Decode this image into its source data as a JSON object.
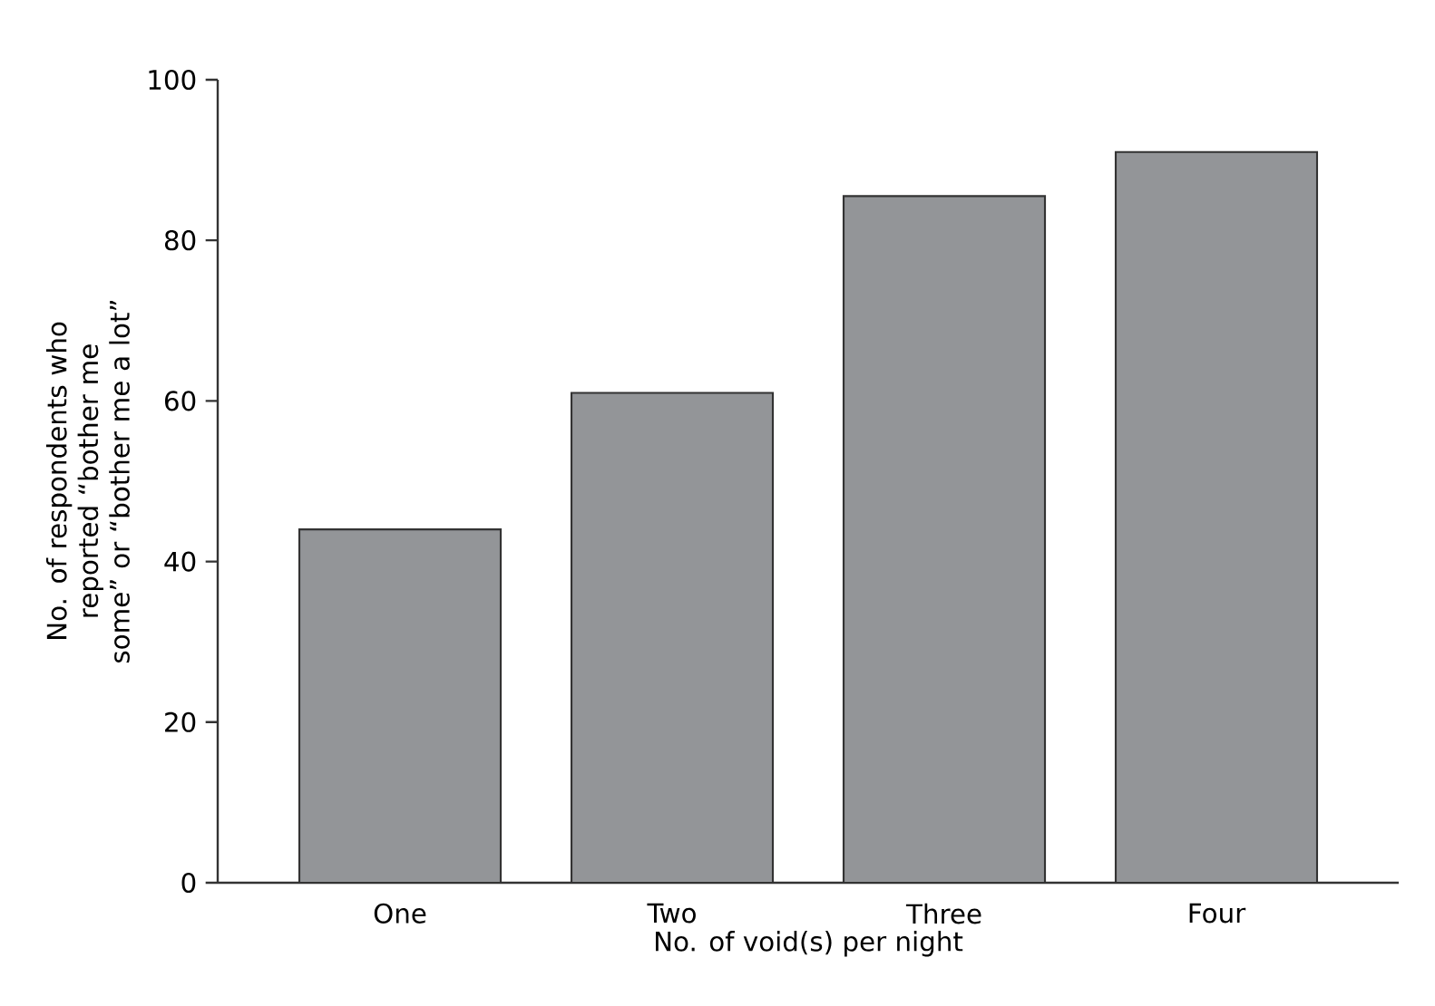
{
  "chart_data": {
    "type": "bar",
    "xlabel": "No. of void(s) per night",
    "ylabel": "No. of respondents who reported “bother me some” or “bother me a lot”",
    "categories": [
      "One",
      "Two",
      "Three",
      "Four"
    ],
    "values": [
      44,
      61,
      85.5,
      91
    ],
    "color": "#939598",
    "ylim": [
      0,
      100
    ],
    "yticks": [
      0,
      20,
      40,
      60,
      80,
      100
    ],
    "grid": false
  }
}
